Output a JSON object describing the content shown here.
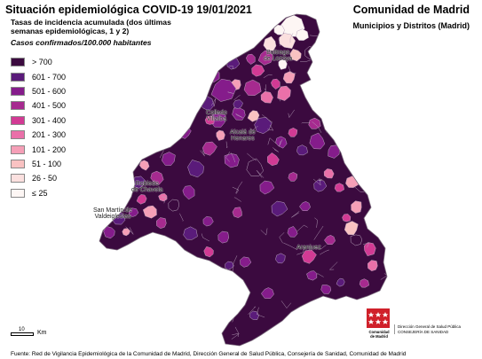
{
  "header": {
    "title": "Situación epidemiológica COVID-19  19/01/2021",
    "region": "Comunidad de Madrid",
    "subtitle_right": "Municipios y Distritos (Madrid)",
    "description": "Tasas de incidencia acumulada (dos últimas semanas epidemiológicas, 1 y 2)",
    "cases_label": "Casos confirmados/100.000 habitantes"
  },
  "legend": [
    {
      "label": "> 700",
      "color": "#3b0a3f"
    },
    {
      "label": "601 - 700",
      "color": "#5a1b7a"
    },
    {
      "label": "501 - 600",
      "color": "#851c8b"
    },
    {
      "label": "401 - 500",
      "color": "#a62a8f"
    },
    {
      "label": "301 - 400",
      "color": "#d23a94"
    },
    {
      "label": "201 - 300",
      "color": "#ea70a9"
    },
    {
      "label": "101 - 200",
      "color": "#f59fb7"
    },
    {
      "label": "51 - 100",
      "color": "#f9c2c2"
    },
    {
      "label": "26 - 50",
      "color": "#fbe0df"
    },
    {
      "label": "≤ 25",
      "color": "#fdf6f4"
    }
  ],
  "map_labels": {
    "buitrago": "Buitrago\nde Lozoya",
    "collado": "Collado\nVillalba",
    "alcala": "Alcalá de\nHenares",
    "robledo": "Robledo\nde Chavela",
    "san_martin": "San Martín de\nValdeiglesias",
    "aranjuez": "Aranjuez"
  },
  "scale": {
    "number": "10",
    "unit": "Km"
  },
  "logo": {
    "text": "Comunidad\nde Madrid",
    "colors": {
      "red": "#d0202a",
      "white": "#ffffff"
    }
  },
  "dg_text": "Dirección General de Salud Pública\nCONSEJERÍA DE SANIDAD",
  "source": "Fuente: Red de Vigilancia Epidemiológica de la Comunidad de Madrid, Dirección General de Salud Pública, Consejería de Sanidad, Comunidad de Madrid",
  "map_colors": {
    "base": "#3b0a3f",
    "border": "#b9a4bc"
  }
}
